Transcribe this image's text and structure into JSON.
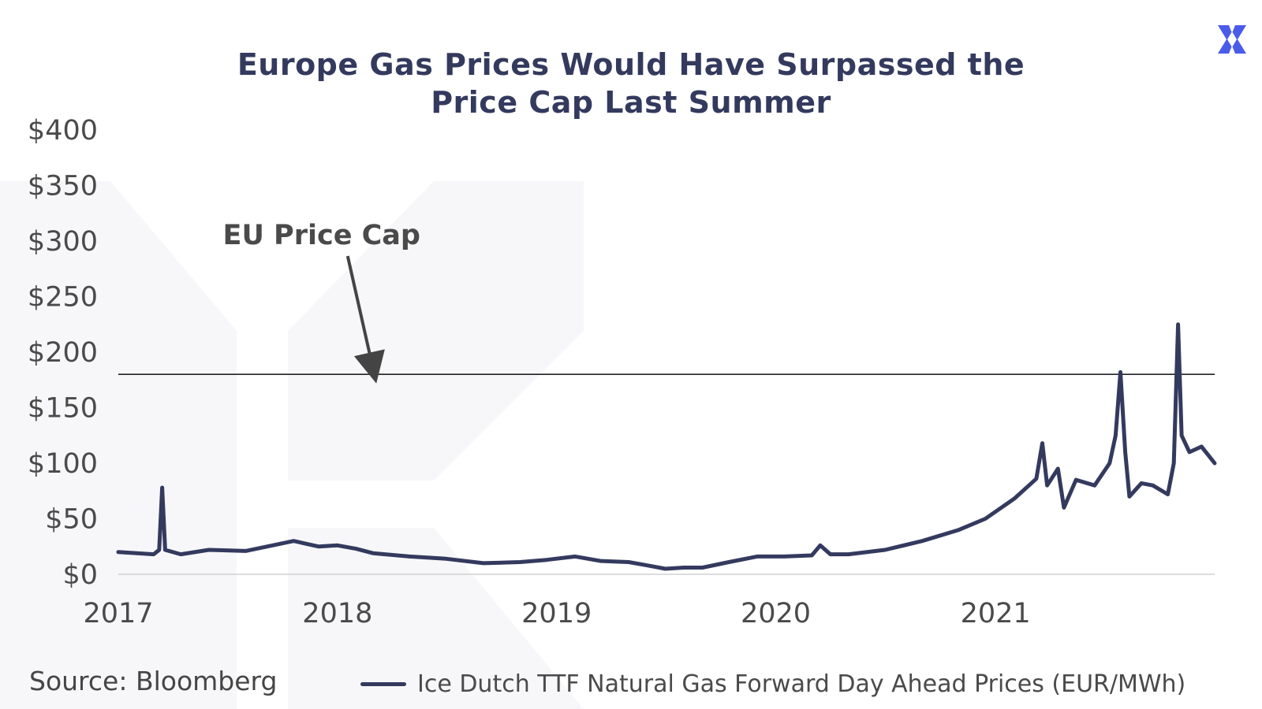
{
  "brand": {
    "accent": "#4a5bea",
    "line_color": "#343a5e",
    "logo_icon": "x-logo-icon"
  },
  "source": "Source: Bloomberg",
  "chart_data": {
    "type": "line",
    "title": [
      "Europe Gas Prices Would Have Surpassed the",
      "Price Cap Last Summer"
    ],
    "xlabel": "",
    "ylabel": "",
    "x_ticks": [
      "2017",
      "2018",
      "2019",
      "2020",
      "2021"
    ],
    "y_ticks": [
      "$0",
      "$50",
      "$100",
      "$150",
      "$200",
      "$250",
      "$300",
      "$350",
      "$400"
    ],
    "xlim": [
      "2017-01-01",
      "2022-01-01"
    ],
    "ylim": [
      0,
      400
    ],
    "grid": false,
    "legend_position": "bottom",
    "reference_lines": [
      {
        "value": 180,
        "label": "EU Price Cap",
        "annotation_x": "2018-03-01"
      }
    ],
    "series": [
      {
        "name": "Ice Dutch TTF Natural Gas Forward Day Ahead Prices (EUR/MWh)",
        "points": [
          [
            "2017-01-01",
            20
          ],
          [
            "2017-02-01",
            19
          ],
          [
            "2017-03-01",
            18
          ],
          [
            "2017-03-10",
            22
          ],
          [
            "2017-03-15",
            78
          ],
          [
            "2017-03-20",
            22
          ],
          [
            "2017-04-15",
            18
          ],
          [
            "2017-06-01",
            22
          ],
          [
            "2017-08-01",
            21
          ],
          [
            "2017-09-15",
            26
          ],
          [
            "2017-10-20",
            30
          ],
          [
            "2017-12-01",
            25
          ],
          [
            "2018-01-01",
            26
          ],
          [
            "2018-02-01",
            23
          ],
          [
            "2018-03-01",
            19
          ],
          [
            "2018-05-01",
            16
          ],
          [
            "2018-07-01",
            14
          ],
          [
            "2018-09-01",
            10
          ],
          [
            "2018-11-01",
            11
          ],
          [
            "2018-12-15",
            13
          ],
          [
            "2019-02-01",
            16
          ],
          [
            "2019-03-15",
            12
          ],
          [
            "2019-05-01",
            11
          ],
          [
            "2019-06-01",
            8
          ],
          [
            "2019-07-01",
            5
          ],
          [
            "2019-08-01",
            6
          ],
          [
            "2019-09-01",
            6
          ],
          [
            "2019-10-15",
            11
          ],
          [
            "2019-12-01",
            16
          ],
          [
            "2020-01-15",
            16
          ],
          [
            "2020-03-01",
            17
          ],
          [
            "2020-03-15",
            26
          ],
          [
            "2020-04-01",
            18
          ],
          [
            "2020-05-01",
            18
          ],
          [
            "2020-07-01",
            22
          ],
          [
            "2020-09-01",
            30
          ],
          [
            "2020-11-01",
            40
          ],
          [
            "2020-12-15",
            50
          ],
          [
            "2021-02-01",
            68
          ],
          [
            "2021-03-10",
            86
          ],
          [
            "2021-03-20",
            118
          ],
          [
            "2021-03-28",
            80
          ],
          [
            "2021-04-15",
            95
          ],
          [
            "2021-04-25",
            60
          ],
          [
            "2021-05-15",
            85
          ],
          [
            "2021-06-15",
            80
          ],
          [
            "2021-07-10",
            100
          ],
          [
            "2021-07-20",
            125
          ],
          [
            "2021-07-28",
            182
          ],
          [
            "2021-08-05",
            110
          ],
          [
            "2021-08-12",
            70
          ],
          [
            "2021-09-01",
            82
          ],
          [
            "2021-09-20",
            80
          ],
          [
            "2021-10-15",
            72
          ],
          [
            "2021-10-25",
            100
          ],
          [
            "2021-11-01",
            225
          ],
          [
            "2021-11-07",
            125
          ],
          [
            "2021-11-20",
            110
          ],
          [
            "2021-12-10",
            115
          ],
          [
            "2022-01-01",
            100
          ]
        ]
      }
    ]
  }
}
